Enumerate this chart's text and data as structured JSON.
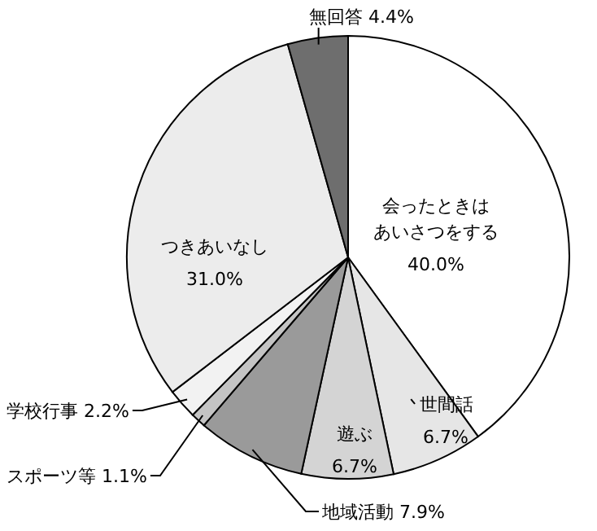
{
  "chart_data": {
    "type": "pie",
    "categories": [
      "会ったときはあいさつをする",
      "世間話",
      "遊ぶ",
      "地域活動",
      "スポーツ等",
      "学校行事",
      "つきあいなし",
      "無回答"
    ],
    "values": [
      40.0,
      6.7,
      6.7,
      7.9,
      1.1,
      2.2,
      31.0,
      4.4
    ],
    "value_labels": [
      "40.0%",
      "6.7%",
      "6.7%",
      "7.9%",
      "1.1%",
      "2.2%",
      "31.0%",
      "4.4%"
    ],
    "colors": [
      "#ffffff",
      "#e6e6e6",
      "#d4d4d4",
      "#9a9a9a",
      "#c4c4c4",
      "#f2f2f2",
      "#ececec",
      "#6e6e6e"
    ]
  }
}
